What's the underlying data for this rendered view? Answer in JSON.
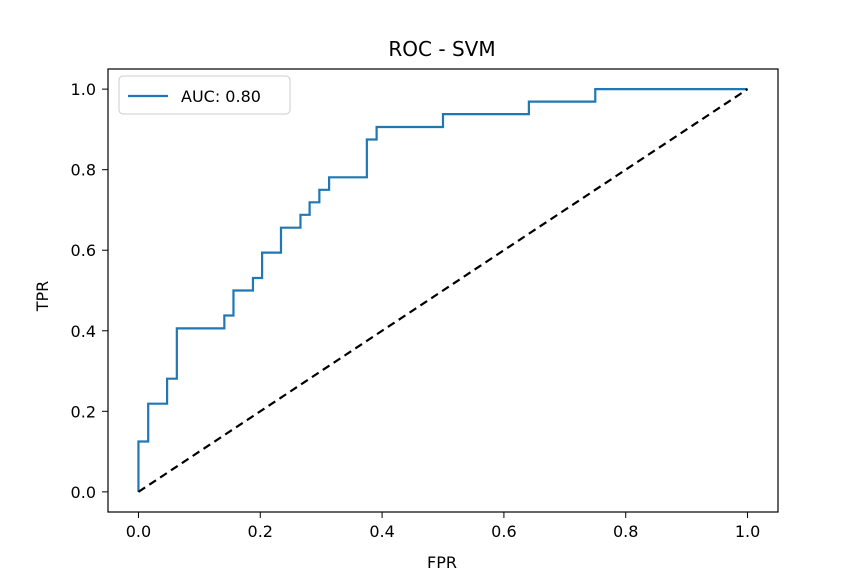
{
  "chart_data": {
    "type": "line",
    "title": "ROC - SVM",
    "xlabel": "FPR",
    "ylabel": "TPR",
    "xlim": [
      -0.05,
      1.05
    ],
    "ylim": [
      -0.05,
      1.05
    ],
    "xticks": [
      0.0,
      0.2,
      0.4,
      0.6,
      0.8,
      1.0
    ],
    "yticks": [
      0.0,
      0.2,
      0.4,
      0.6,
      0.8,
      1.0
    ],
    "xtick_labels": [
      "0.0",
      "0.2",
      "0.4",
      "0.6",
      "0.8",
      "1.0"
    ],
    "ytick_labels": [
      "0.0",
      "0.2",
      "0.4",
      "0.6",
      "0.8",
      "1.0"
    ],
    "grid": false,
    "legend_position": "upper-left",
    "series": [
      {
        "name": "AUC: 0.80",
        "color": "#1f77b4",
        "style": "step",
        "x": [
          0.0,
          0.0,
          0.016,
          0.016,
          0.047,
          0.047,
          0.063,
          0.063,
          0.141,
          0.141,
          0.156,
          0.156,
          0.188,
          0.188,
          0.203,
          0.203,
          0.234,
          0.234,
          0.266,
          0.266,
          0.281,
          0.281,
          0.297,
          0.297,
          0.313,
          0.313,
          0.375,
          0.375,
          0.391,
          0.391,
          0.5,
          0.5,
          0.641,
          0.641,
          0.75,
          0.75,
          1.0
        ],
        "y": [
          0.0,
          0.125,
          0.125,
          0.219,
          0.219,
          0.281,
          0.281,
          0.406,
          0.406,
          0.438,
          0.438,
          0.5,
          0.5,
          0.531,
          0.531,
          0.594,
          0.594,
          0.656,
          0.656,
          0.688,
          0.688,
          0.719,
          0.719,
          0.75,
          0.75,
          0.781,
          0.781,
          0.875,
          0.875,
          0.906,
          0.906,
          0.938,
          0.938,
          0.969,
          0.969,
          1.0,
          1.0
        ]
      },
      {
        "name": "",
        "color": "#000000",
        "style": "dashed",
        "x": [
          0.0,
          1.0
        ],
        "y": [
          0.0,
          1.0
        ]
      }
    ]
  }
}
